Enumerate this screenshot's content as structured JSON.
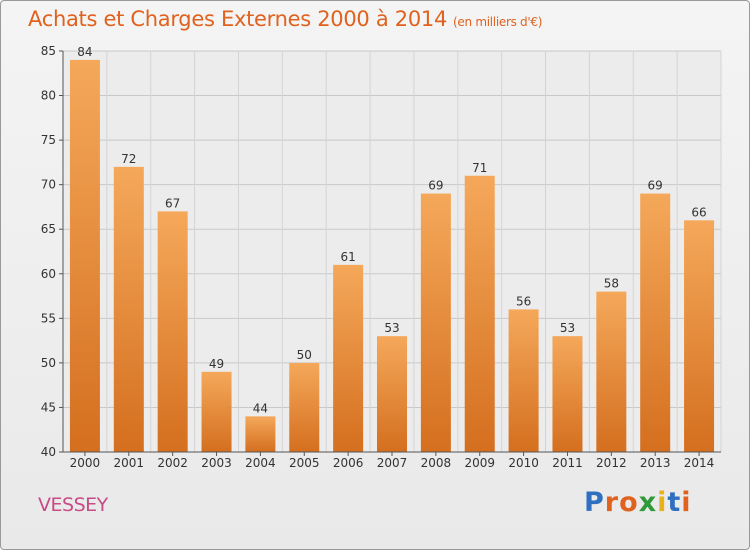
{
  "header": {
    "title": "Achats et Charges Externes 2000 à 2014",
    "unit": "(en milliers d'€)"
  },
  "footer": {
    "place": "VESSEY",
    "logo": "Proxiti"
  },
  "colors": {
    "bar_top": "#f5a85a",
    "bar_bottom": "#d46f1f",
    "title": "#e0621e",
    "place": "#c84a86",
    "logo": [
      "#2f6fc1",
      "#e0621e",
      "#e0621e",
      "#2f9a3a",
      "#e8b21c",
      "#2f6fc1",
      "#e0621e"
    ]
  },
  "chart_data": {
    "type": "bar",
    "categories": [
      "2000",
      "2001",
      "2002",
      "2003",
      "2004",
      "2005",
      "2006",
      "2007",
      "2008",
      "2009",
      "2010",
      "2011",
      "2012",
      "2013",
      "2014"
    ],
    "values": [
      84,
      72,
      67,
      49,
      44,
      50,
      61,
      53,
      69,
      71,
      56,
      53,
      58,
      69,
      66
    ],
    "ylim": [
      40,
      85
    ],
    "yticks": [
      40,
      45,
      50,
      55,
      60,
      65,
      70,
      75,
      80,
      85
    ],
    "grid": true,
    "title": "Achats et Charges Externes 2000 à 2014",
    "ylabel": "",
    "xlabel": ""
  }
}
